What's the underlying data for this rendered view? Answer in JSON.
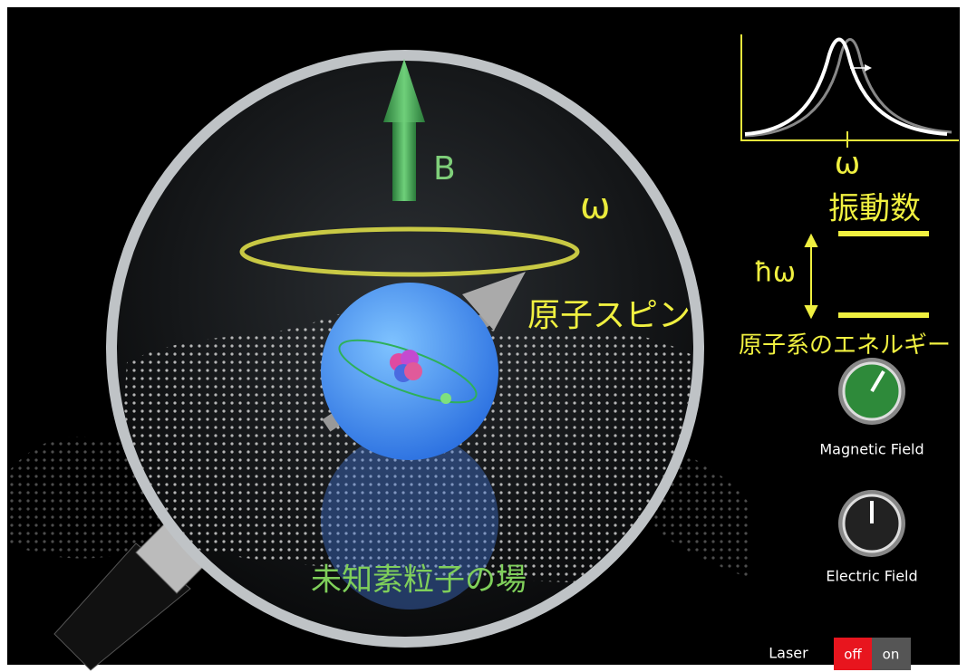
{
  "scene": {
    "field_label": "B",
    "ring_label": "ω",
    "spin_label": "原子スピン",
    "field_name": "未知素粒子の場"
  },
  "spectrum": {
    "axis_label": "ω",
    "frequency_label": "振動数",
    "gap_label": "ħω",
    "energy_label": "原子系のエネルギー"
  },
  "controls": {
    "magnetic_field": "Magnetic Field",
    "electric_field": "Electric Field",
    "laser": {
      "label": "Laser",
      "off": "off",
      "on": "on"
    }
  }
}
